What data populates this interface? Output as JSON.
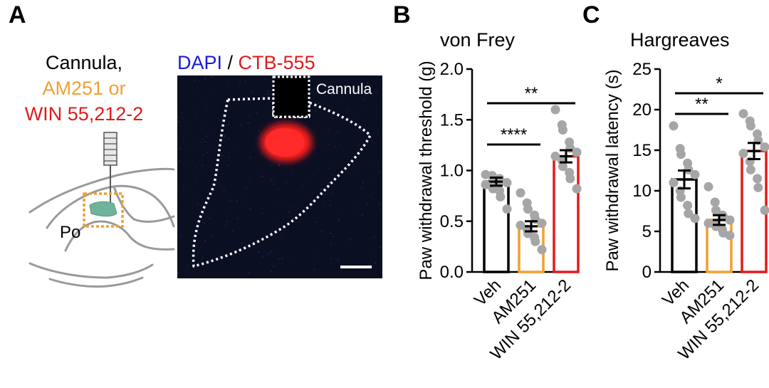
{
  "panels": {
    "a": "A",
    "b": "B",
    "c": "C"
  },
  "panel_a": {
    "cannula_label": "Cannula,",
    "drug1_label": "AM251 or",
    "drug2_label": "WIN 55,212-2",
    "region_label": "Po",
    "micrograph_title_dapi": "DAPI",
    "micrograph_title_sep": " / ",
    "micrograph_title_ctb": "CTB-555",
    "micrograph_cannula_label": "Cannula",
    "colors": {
      "dapi": "#1a1ad6",
      "ctb": "#e01b1b",
      "drug1": "#f0a030",
      "drug2": "#e01b1b",
      "region": "#6fb39a",
      "dotted_box": "#f0a030",
      "outline": "#9a9a9a"
    }
  },
  "chart_data": [
    {
      "type": "bar",
      "title": "von Frey",
      "ylabel": "Paw withdrawal threshold (g)",
      "categories": [
        "Veh",
        "AM251",
        "WIN 55,212-2"
      ],
      "values": [
        0.89,
        0.45,
        1.14
      ],
      "errors": [
        0.04,
        0.05,
        0.06
      ],
      "ylim": [
        0,
        2.0
      ],
      "yticks": [
        "0.0",
        "0.5",
        "1.0",
        "1.5",
        "2.0"
      ],
      "ytick_values": [
        0,
        0.5,
        1.0,
        1.5,
        2.0
      ],
      "bar_colors": [
        "#000000",
        "#f0a030",
        "#e01b1b"
      ],
      "points": [
        [
          0.96,
          0.95,
          0.93,
          0.92,
          0.9,
          0.88,
          0.86,
          0.84,
          0.82,
          0.8,
          0.74,
          0.62
        ],
        [
          0.78,
          0.68,
          0.62,
          0.56,
          0.52,
          0.48,
          0.46,
          0.42,
          0.38,
          0.34,
          0.3,
          0.22
        ],
        [
          1.6,
          1.45,
          1.4,
          1.28,
          1.22,
          1.18,
          1.14,
          1.1,
          1.04,
          0.98,
          0.92,
          0.82
        ]
      ],
      "significance": [
        {
          "from": 0,
          "to": 1,
          "label": "****"
        },
        {
          "from": 0,
          "to": 2,
          "label": "**"
        }
      ]
    },
    {
      "type": "bar",
      "title": "Hargreaves",
      "ylabel": "Paw withdrawal latency (s)",
      "categories": [
        "Veh",
        "AM251",
        "WIN 55,212-2"
      ],
      "values": [
        11.4,
        6.4,
        14.9
      ],
      "errors": [
        1.1,
        0.6,
        1.0
      ],
      "ylim": [
        0,
        25
      ],
      "yticks": [
        "0",
        "5",
        "10",
        "15",
        "20",
        "25"
      ],
      "ytick_values": [
        0,
        5,
        10,
        15,
        20,
        25
      ],
      "bar_colors": [
        "#000000",
        "#f0a030",
        "#e01b1b"
      ],
      "points": [
        [
          18.0,
          15.2,
          14.5,
          13.4,
          12.6,
          12.0,
          11.0,
          10.0,
          9.2,
          8.2,
          7.2,
          6.6
        ],
        [
          10.5,
          8.6,
          7.6,
          7.0,
          6.8,
          6.4,
          6.0,
          5.8,
          5.6,
          5.2,
          4.8,
          4.5
        ],
        [
          19.5,
          18.6,
          18.0,
          17.0,
          16.2,
          15.4,
          14.6,
          13.6,
          12.6,
          11.5,
          10.4,
          7.6
        ]
      ],
      "significance": [
        {
          "from": 0,
          "to": 1,
          "label": "**"
        },
        {
          "from": 0,
          "to": 2,
          "label": "*"
        }
      ]
    }
  ]
}
